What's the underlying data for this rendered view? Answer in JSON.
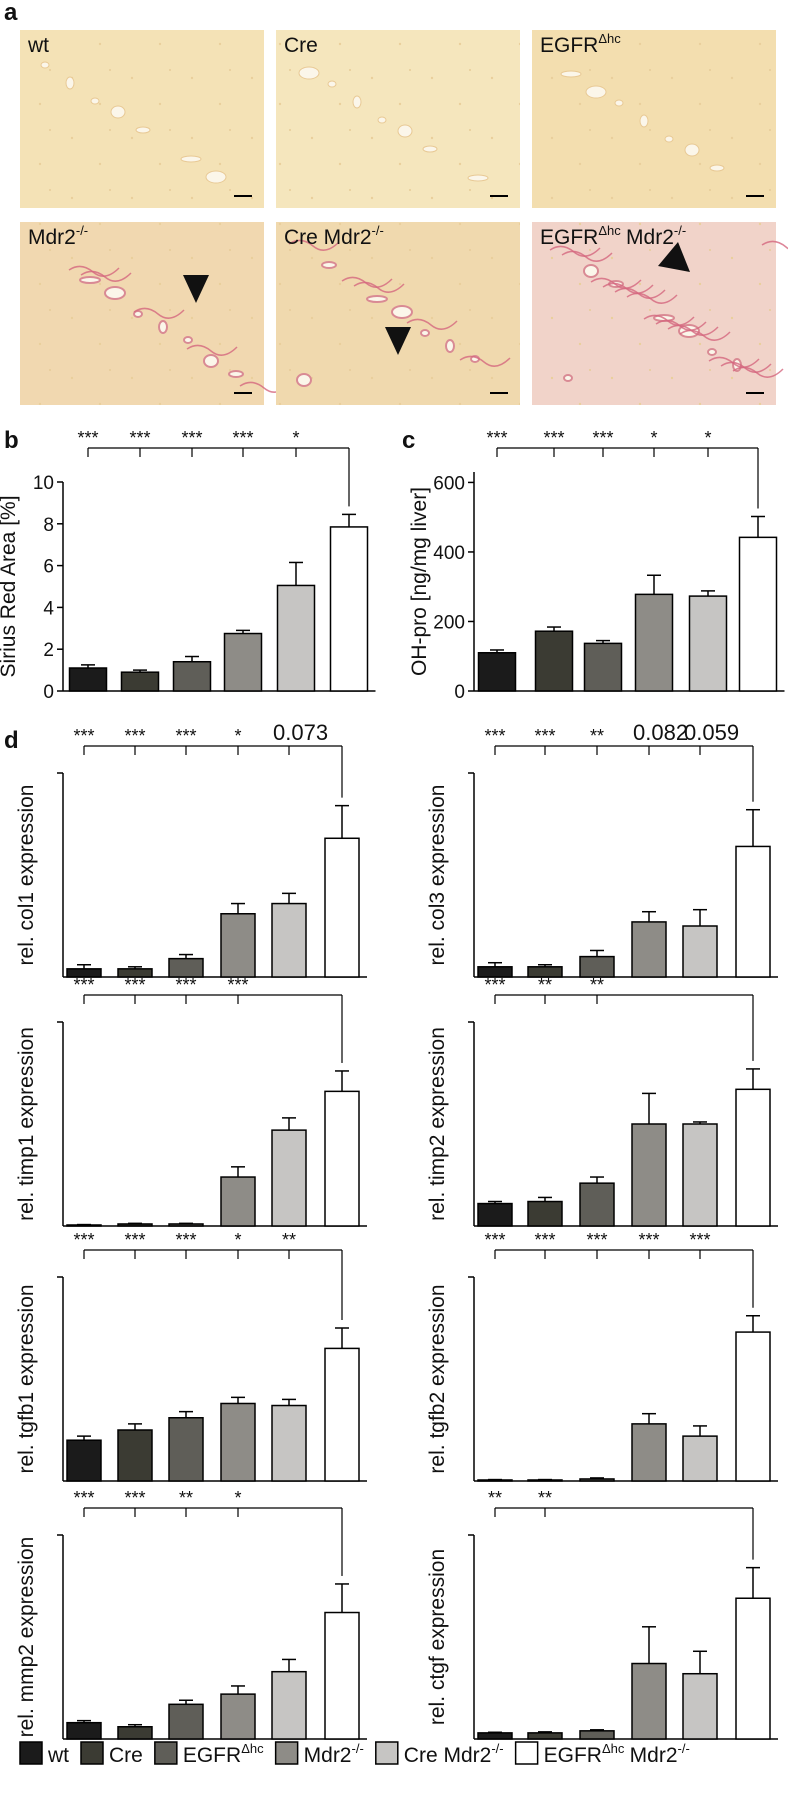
{
  "panel_letters": {
    "a": "a",
    "b": "b",
    "c": "c",
    "d": "d"
  },
  "images": [
    {
      "name": "wt"
    },
    {
      "name": "Cre"
    },
    {
      "name": "EGFR",
      "sup": "Δhc"
    },
    {
      "name": "Mdr2",
      "sup": "-/-"
    },
    {
      "name": "Cre Mdr2",
      "sup": "-/-"
    },
    {
      "name": "EGFR",
      "sup": "Δhc",
      "name2": "Mdr2",
      "sup2": "-/-"
    }
  ],
  "legend": [
    {
      "name": "wt",
      "color": "#1b1b1b"
    },
    {
      "name": "Cre",
      "color": "#3b3b33"
    },
    {
      "name": "EGFR",
      "sup": "Δhc",
      "color": "#5f5e58"
    },
    {
      "name": "Mdr2",
      "sup": "-/-",
      "color": "#8e8c87"
    },
    {
      "name": "Cre Mdr2",
      "sup": "-/-",
      "color": "#c6c5c3"
    },
    {
      "name": "EGFR",
      "sup": "Δhc",
      "name2": "Mdr2",
      "sup2": "-/-",
      "color": "#ffffff"
    }
  ],
  "chart_data": [
    {
      "type": "bar",
      "ylabel": "Sirius Red Area [%]",
      "ylim": [
        0,
        10
      ],
      "yticks": [
        0,
        2,
        4,
        6,
        8,
        10
      ],
      "values": [
        1.1,
        0.9,
        1.4,
        2.75,
        5.05,
        7.85
      ],
      "errors": [
        0.15,
        0.1,
        0.25,
        0.15,
        1.1,
        0.6
      ],
      "significance": [
        "***",
        "***",
        "***",
        "***",
        "*"
      ]
    },
    {
      "type": "bar",
      "ylabel": "OH-pro [ng/mg liver]",
      "ylim": [
        0,
        630
      ],
      "yticks": [
        0,
        200,
        400,
        600
      ],
      "values": [
        110,
        172,
        137,
        278,
        273,
        442
      ],
      "errors": [
        8,
        12,
        8,
        55,
        15,
        60
      ],
      "significance": [
        "***",
        "***",
        "***",
        "*",
        "*"
      ]
    },
    {
      "type": "bar",
      "ylabel": "rel. col1 expression",
      "ylim": [
        0,
        1
      ],
      "values": [
        0.04,
        0.04,
        0.09,
        0.31,
        0.36,
        0.68
      ],
      "errors": [
        0.02,
        0.01,
        0.02,
        0.05,
        0.05,
        0.16
      ],
      "significance": [
        "***",
        "***",
        "***",
        "*",
        "0.073"
      ]
    },
    {
      "type": "bar",
      "ylabel": "rel. col3 expression",
      "ylim": [
        0,
        1
      ],
      "values": [
        0.05,
        0.05,
        0.1,
        0.27,
        0.25,
        0.64
      ],
      "errors": [
        0.02,
        0.01,
        0.03,
        0.05,
        0.08,
        0.18
      ],
      "significance": [
        "***",
        "***",
        "**",
        "0.082",
        "0.059"
      ]
    },
    {
      "type": "bar",
      "ylabel": "rel. timp1 expression",
      "ylim": [
        0,
        1
      ],
      "values": [
        0.005,
        0.01,
        0.01,
        0.24,
        0.47,
        0.66
      ],
      "errors": [
        0.002,
        0.003,
        0.003,
        0.05,
        0.06,
        0.1
      ],
      "significance": [
        "***",
        "***",
        "***",
        "***"
      ]
    },
    {
      "type": "bar",
      "ylabel": "rel. timp2 expression",
      "ylim": [
        0,
        1
      ],
      "values": [
        0.11,
        0.12,
        0.21,
        0.5,
        0.5,
        0.67
      ],
      "errors": [
        0.01,
        0.02,
        0.03,
        0.15,
        0.01,
        0.1
      ],
      "significance": [
        "***",
        "**",
        "**"
      ]
    },
    {
      "type": "bar",
      "ylabel": "rel. tgfb1 expression",
      "ylim": [
        0,
        1
      ],
      "values": [
        0.2,
        0.25,
        0.31,
        0.38,
        0.37,
        0.65
      ],
      "errors": [
        0.02,
        0.03,
        0.03,
        0.03,
        0.03,
        0.1
      ],
      "significance": [
        "***",
        "***",
        "***",
        "*",
        "**"
      ]
    },
    {
      "type": "bar",
      "ylabel": "rel. tgfb2 expression",
      "ylim": [
        0,
        1
      ],
      "values": [
        0.005,
        0.005,
        0.01,
        0.28,
        0.22,
        0.73
      ],
      "errors": [
        0.002,
        0.002,
        0.005,
        0.05,
        0.05,
        0.08
      ],
      "significance": [
        "***",
        "***",
        "***",
        "***",
        "***"
      ]
    },
    {
      "type": "bar",
      "ylabel": "rel. mmp2 expression",
      "ylim": [
        0,
        1
      ],
      "values": [
        0.08,
        0.06,
        0.17,
        0.22,
        0.33,
        0.62
      ],
      "errors": [
        0.01,
        0.01,
        0.02,
        0.04,
        0.06,
        0.14
      ],
      "significance": [
        "***",
        "***",
        "**",
        "*"
      ]
    },
    {
      "type": "bar",
      "ylabel": "rel. ctgf expression",
      "ylim": [
        0,
        1
      ],
      "values": [
        0.03,
        0.03,
        0.04,
        0.37,
        0.32,
        0.69
      ],
      "errors": [
        0.003,
        0.005,
        0.005,
        0.18,
        0.11,
        0.15
      ],
      "significance": [
        "**",
        "**"
      ]
    }
  ]
}
